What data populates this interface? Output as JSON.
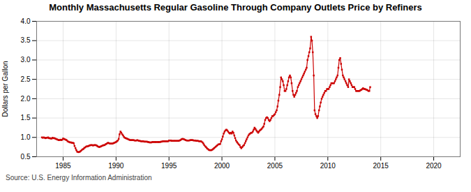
{
  "chart_data": {
    "type": "line",
    "title": "Monthly Massachusetts Regular Gasoline Through Company Outlets Price by Refiners",
    "ylabel": "Dollars per Gallon",
    "source": "Source: U.S. Energy Information Administration",
    "color": "#cc0000",
    "marker": "square",
    "grid": true,
    "xlim": [
      1982.5,
      2022.5
    ],
    "xticks": [
      1985,
      1990,
      1995,
      2000,
      2005,
      2010,
      2015,
      2020
    ],
    "ylim": [
      0.5,
      4.0
    ],
    "yticks": [
      0.5,
      {
        "value": 1.0,
        "label": "1.0"
      },
      1.5,
      {
        "value": 2.0,
        "label": "2.0"
      },
      2.5,
      {
        "value": 3.0,
        "label": "3.0"
      },
      3.5,
      {
        "value": 4.0,
        "label": "4.0"
      }
    ],
    "x": [
      1983.0,
      1983.08,
      1983.17,
      1983.25,
      1983.33,
      1983.42,
      1983.5,
      1983.58,
      1983.67,
      1983.75,
      1983.83,
      1983.92,
      1984.0,
      1984.08,
      1984.17,
      1984.25,
      1984.33,
      1984.42,
      1984.5,
      1984.58,
      1984.67,
      1984.75,
      1984.83,
      1984.92,
      1985.0,
      1985.08,
      1985.17,
      1985.25,
      1985.33,
      1985.42,
      1985.5,
      1985.58,
      1985.67,
      1985.75,
      1985.83,
      1985.92,
      1986.0,
      1986.08,
      1986.17,
      1986.25,
      1986.33,
      1986.42,
      1986.5,
      1986.58,
      1986.67,
      1986.75,
      1986.83,
      1986.92,
      1987.0,
      1987.08,
      1987.17,
      1987.25,
      1987.33,
      1987.42,
      1987.5,
      1987.58,
      1987.67,
      1987.75,
      1987.83,
      1987.92,
      1988.0,
      1988.08,
      1988.17,
      1988.25,
      1988.33,
      1988.42,
      1988.5,
      1988.58,
      1988.67,
      1988.75,
      1988.83,
      1988.92,
      1989.0,
      1989.08,
      1989.17,
      1989.25,
      1989.33,
      1989.42,
      1989.5,
      1989.58,
      1989.67,
      1989.75,
      1989.83,
      1989.92,
      1990.0,
      1990.08,
      1990.17,
      1990.25,
      1990.33,
      1990.42,
      1990.5,
      1990.58,
      1990.67,
      1990.75,
      1990.83,
      1990.92,
      1991.0,
      1991.08,
      1991.17,
      1991.25,
      1991.33,
      1991.42,
      1991.5,
      1991.58,
      1991.67,
      1991.75,
      1991.83,
      1991.92,
      1992.0,
      1992.08,
      1992.17,
      1992.25,
      1992.33,
      1992.42,
      1992.5,
      1992.58,
      1992.67,
      1992.75,
      1992.83,
      1992.92,
      1993.0,
      1993.08,
      1993.17,
      1993.25,
      1993.33,
      1993.42,
      1993.5,
      1993.58,
      1993.67,
      1993.75,
      1993.83,
      1993.92,
      1994.0,
      1994.08,
      1994.17,
      1994.25,
      1994.33,
      1994.42,
      1994.5,
      1994.58,
      1994.67,
      1994.75,
      1994.83,
      1994.92,
      1995.0,
      1995.08,
      1995.17,
      1995.25,
      1995.33,
      1995.42,
      1995.5,
      1995.58,
      1995.67,
      1995.75,
      1995.83,
      1995.92,
      1996.0,
      1996.08,
      1996.17,
      1996.25,
      1996.33,
      1996.42,
      1996.5,
      1996.58,
      1996.67,
      1996.75,
      1996.83,
      1996.92,
      1997.0,
      1997.08,
      1997.17,
      1997.25,
      1997.33,
      1997.42,
      1997.5,
      1997.58,
      1997.67,
      1997.75,
      1997.83,
      1997.92,
      1998.0,
      1998.08,
      1998.17,
      1998.25,
      1998.33,
      1998.42,
      1998.5,
      1998.58,
      1998.67,
      1998.75,
      1998.83,
      1998.92,
      1999.0,
      1999.08,
      1999.17,
      1999.25,
      1999.33,
      1999.42,
      1999.5,
      1999.58,
      1999.67,
      1999.75,
      1999.83,
      1999.92,
      2000.0,
      2000.08,
      2000.17,
      2000.25,
      2000.33,
      2000.42,
      2000.5,
      2000.58,
      2000.67,
      2000.75,
      2000.83,
      2000.92,
      2001.0,
      2001.08,
      2001.17,
      2001.25,
      2001.33,
      2001.42,
      2001.5,
      2001.58,
      2001.67,
      2001.75,
      2001.83,
      2001.92,
      2002.0,
      2002.08,
      2002.17,
      2002.25,
      2002.33,
      2002.42,
      2002.5,
      2002.58,
      2002.67,
      2002.75,
      2002.83,
      2002.92,
      2003.0,
      2003.08,
      2003.17,
      2003.25,
      2003.33,
      2003.42,
      2003.5,
      2003.58,
      2003.67,
      2003.75,
      2003.83,
      2003.92,
      2004.0,
      2004.08,
      2004.17,
      2004.25,
      2004.33,
      2004.42,
      2004.5,
      2004.58,
      2004.67,
      2004.75,
      2004.83,
      2004.92,
      2005.0,
      2005.08,
      2005.17,
      2005.25,
      2005.33,
      2005.42,
      2005.5,
      2005.58,
      2005.67,
      2005.75,
      2005.83,
      2005.92,
      2006.0,
      2006.08,
      2006.17,
      2006.25,
      2006.33,
      2006.42,
      2006.5,
      2006.58,
      2006.67,
      2006.75,
      2006.83,
      2006.92,
      2007.0,
      2007.08,
      2007.17,
      2007.25,
      2007.33,
      2007.42,
      2007.5,
      2007.58,
      2007.67,
      2007.75,
      2007.83,
      2007.92,
      2008.0,
      2008.08,
      2008.17,
      2008.25,
      2008.33,
      2008.42,
      2008.5,
      2008.58,
      2008.67,
      2008.75,
      2008.83,
      2008.92,
      2009.0,
      2009.08,
      2009.17,
      2009.25,
      2009.33,
      2009.42,
      2009.5,
      2009.58,
      2009.67,
      2009.75,
      2009.83,
      2009.92,
      2010.0,
      2010.08,
      2010.17,
      2010.25,
      2010.33,
      2010.42,
      2010.5,
      2010.58,
      2010.67,
      2010.75,
      2010.83,
      2010.92,
      2011.0,
      2011.08,
      2011.17,
      2011.25,
      2011.33,
      2011.42,
      2011.5,
      2011.58,
      2011.67,
      2011.75,
      2011.83,
      2011.92,
      2012.0,
      2012.08,
      2012.17,
      2012.25,
      2012.33,
      2012.42,
      2012.5,
      2012.58,
      2012.67,
      2012.75,
      2012.83,
      2012.92,
      2013.0,
      2013.08,
      2013.17,
      2013.25,
      2013.33,
      2013.42,
      2013.5,
      2013.58,
      2013.67,
      2013.75,
      2013.83,
      2013.92,
      2014.0
    ],
    "values": [
      1.0,
      0.99,
      1.0,
      0.99,
      0.98,
      0.99,
      0.99,
      1.0,
      0.98,
      0.98,
      0.97,
      0.97,
      0.99,
      0.98,
      0.98,
      0.97,
      0.96,
      0.95,
      0.94,
      0.93,
      0.93,
      0.94,
      0.93,
      0.94,
      0.97,
      0.96,
      0.95,
      0.94,
      0.93,
      0.9,
      0.89,
      0.88,
      0.87,
      0.87,
      0.86,
      0.86,
      0.85,
      0.78,
      0.72,
      0.67,
      0.63,
      0.62,
      0.62,
      0.63,
      0.65,
      0.67,
      0.69,
      0.7,
      0.73,
      0.74,
      0.76,
      0.77,
      0.77,
      0.78,
      0.79,
      0.8,
      0.8,
      0.8,
      0.79,
      0.8,
      0.8,
      0.8,
      0.79,
      0.77,
      0.76,
      0.75,
      0.76,
      0.77,
      0.78,
      0.79,
      0.8,
      0.8,
      0.82,
      0.83,
      0.85,
      0.86,
      0.85,
      0.84,
      0.84,
      0.84,
      0.84,
      0.85,
      0.86,
      0.87,
      0.88,
      0.9,
      0.92,
      0.96,
      1.08,
      1.15,
      1.12,
      1.08,
      1.05,
      1.01,
      0.99,
      0.98,
      0.97,
      0.96,
      0.95,
      0.94,
      0.93,
      0.93,
      0.93,
      0.93,
      0.93,
      0.92,
      0.92,
      0.92,
      0.93,
      0.92,
      0.91,
      0.91,
      0.9,
      0.9,
      0.9,
      0.9,
      0.89,
      0.89,
      0.89,
      0.89,
      0.88,
      0.88,
      0.87,
      0.87,
      0.87,
      0.88,
      0.88,
      0.88,
      0.88,
      0.88,
      0.88,
      0.88,
      0.88,
      0.88,
      0.88,
      0.89,
      0.89,
      0.9,
      0.9,
      0.9,
      0.9,
      0.9,
      0.9,
      0.9,
      0.92,
      0.92,
      0.92,
      0.91,
      0.91,
      0.91,
      0.91,
      0.91,
      0.91,
      0.91,
      0.91,
      0.91,
      0.92,
      0.93,
      0.95,
      0.96,
      0.96,
      0.95,
      0.94,
      0.93,
      0.92,
      0.92,
      0.92,
      0.92,
      0.93,
      0.93,
      0.93,
      0.93,
      0.92,
      0.92,
      0.92,
      0.91,
      0.91,
      0.91,
      0.9,
      0.9,
      0.9,
      0.89,
      0.87,
      0.84,
      0.8,
      0.77,
      0.75,
      0.72,
      0.7,
      0.68,
      0.67,
      0.67,
      0.67,
      0.68,
      0.7,
      0.72,
      0.74,
      0.76,
      0.78,
      0.8,
      0.82,
      0.82,
      0.83,
      0.9,
      0.95,
      1.02,
      1.1,
      1.15,
      1.18,
      1.2,
      1.18,
      1.15,
      1.12,
      1.1,
      1.12,
      1.1,
      1.15,
      1.12,
      1.05,
      0.98,
      0.92,
      0.88,
      0.85,
      0.82,
      0.8,
      0.75,
      0.72,
      0.75,
      0.78,
      0.8,
      0.85,
      0.9,
      0.95,
      1.0,
      1.05,
      1.08,
      1.1,
      1.12,
      1.12,
      1.15,
      1.2,
      1.25,
      1.22,
      1.18,
      1.15,
      1.12,
      1.15,
      1.18,
      1.2,
      1.22,
      1.25,
      1.28,
      1.35,
      1.45,
      1.5,
      1.52,
      1.5,
      1.45,
      1.42,
      1.45,
      1.5,
      1.55,
      1.55,
      1.58,
      1.6,
      1.65,
      1.7,
      1.8,
      1.95,
      2.1,
      2.3,
      2.55,
      2.5,
      2.45,
      2.35,
      2.2,
      2.2,
      2.25,
      2.35,
      2.45,
      2.55,
      2.6,
      2.55,
      2.4,
      2.2,
      2.1,
      2.05,
      2.1,
      2.15,
      2.2,
      2.3,
      2.35,
      2.4,
      2.45,
      2.5,
      2.55,
      2.6,
      2.65,
      2.7,
      2.75,
      2.8,
      3.0,
      3.1,
      3.2,
      3.3,
      3.6,
      3.5,
      3.2,
      2.6,
      1.7,
      1.6,
      1.55,
      1.5,
      1.55,
      1.7,
      1.8,
      1.9,
      2.0,
      2.05,
      2.1,
      2.15,
      2.2,
      2.2,
      2.25,
      2.25,
      2.25,
      2.3,
      2.35,
      2.4,
      2.4,
      2.4,
      2.4,
      2.45,
      2.5,
      2.55,
      2.6,
      2.8,
      3.0,
      3.05,
      2.9,
      2.75,
      2.6,
      2.55,
      2.5,
      2.45,
      2.4,
      2.35,
      2.3,
      2.5,
      2.45,
      2.4,
      2.35,
      2.3,
      2.3,
      2.3,
      2.25,
      2.2,
      2.2,
      2.2,
      2.2,
      2.2,
      2.22,
      2.23,
      2.25,
      2.27,
      2.25,
      2.25,
      2.24,
      2.23,
      2.22,
      2.2,
      2.2,
      2.3
    ]
  }
}
